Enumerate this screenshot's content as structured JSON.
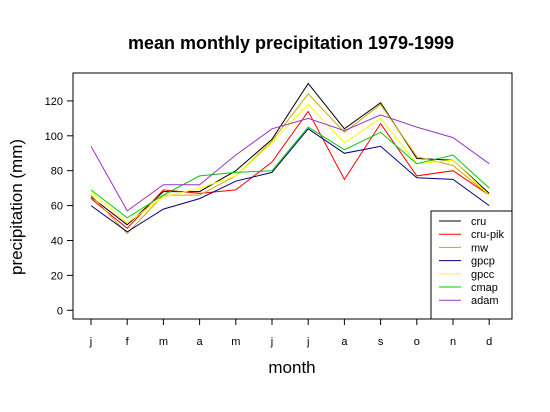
{
  "chart_data": {
    "type": "line",
    "title": "mean monthly precipitation 1979-1999",
    "xlabel": "month",
    "ylabel": "precipitation (mm)",
    "categories": [
      "j",
      "f",
      "m",
      "a",
      "m",
      "j",
      "j",
      "a",
      "s",
      "o",
      "n",
      "d"
    ],
    "yticks": [
      0,
      20,
      40,
      60,
      80,
      100,
      120
    ],
    "ylim": [
      -5,
      136
    ],
    "grid": false,
    "legend_position": "bottom-right",
    "series": [
      {
        "name": "cru",
        "color": "#000000",
        "values": [
          65,
          49,
          68,
          68,
          80,
          98,
          130,
          104,
          119,
          87,
          86,
          67
        ]
      },
      {
        "name": "cru-pik",
        "color": "#ff0000",
        "values": [
          64,
          47,
          69,
          67,
          69,
          85,
          114,
          75,
          107,
          77,
          80,
          66
        ]
      },
      {
        "name": "mw",
        "color": "#ccaa00",
        "values": [
          66,
          44,
          66,
          66,
          77,
          97,
          124,
          102,
          118,
          88,
          83,
          66
        ]
      },
      {
        "name": "gpcp",
        "color": "#000080",
        "values": [
          60,
          45,
          58,
          64,
          74,
          79,
          104,
          90,
          94,
          76,
          75,
          60
        ]
      },
      {
        "name": "gpcc",
        "color": "#ffff00",
        "values": [
          68,
          50,
          65,
          70,
          77,
          96,
          118,
          96,
          110,
          84,
          86,
          66
        ]
      },
      {
        "name": "cmap",
        "color": "#00cc00",
        "values": [
          69,
          53,
          66,
          77,
          79,
          80,
          105,
          92,
          102,
          84,
          89,
          70
        ]
      },
      {
        "name": "adam",
        "color": "#9933cc",
        "values": [
          94,
          57,
          72,
          72,
          89,
          104,
          110,
          103,
          112,
          105,
          99,
          84
        ]
      }
    ]
  }
}
